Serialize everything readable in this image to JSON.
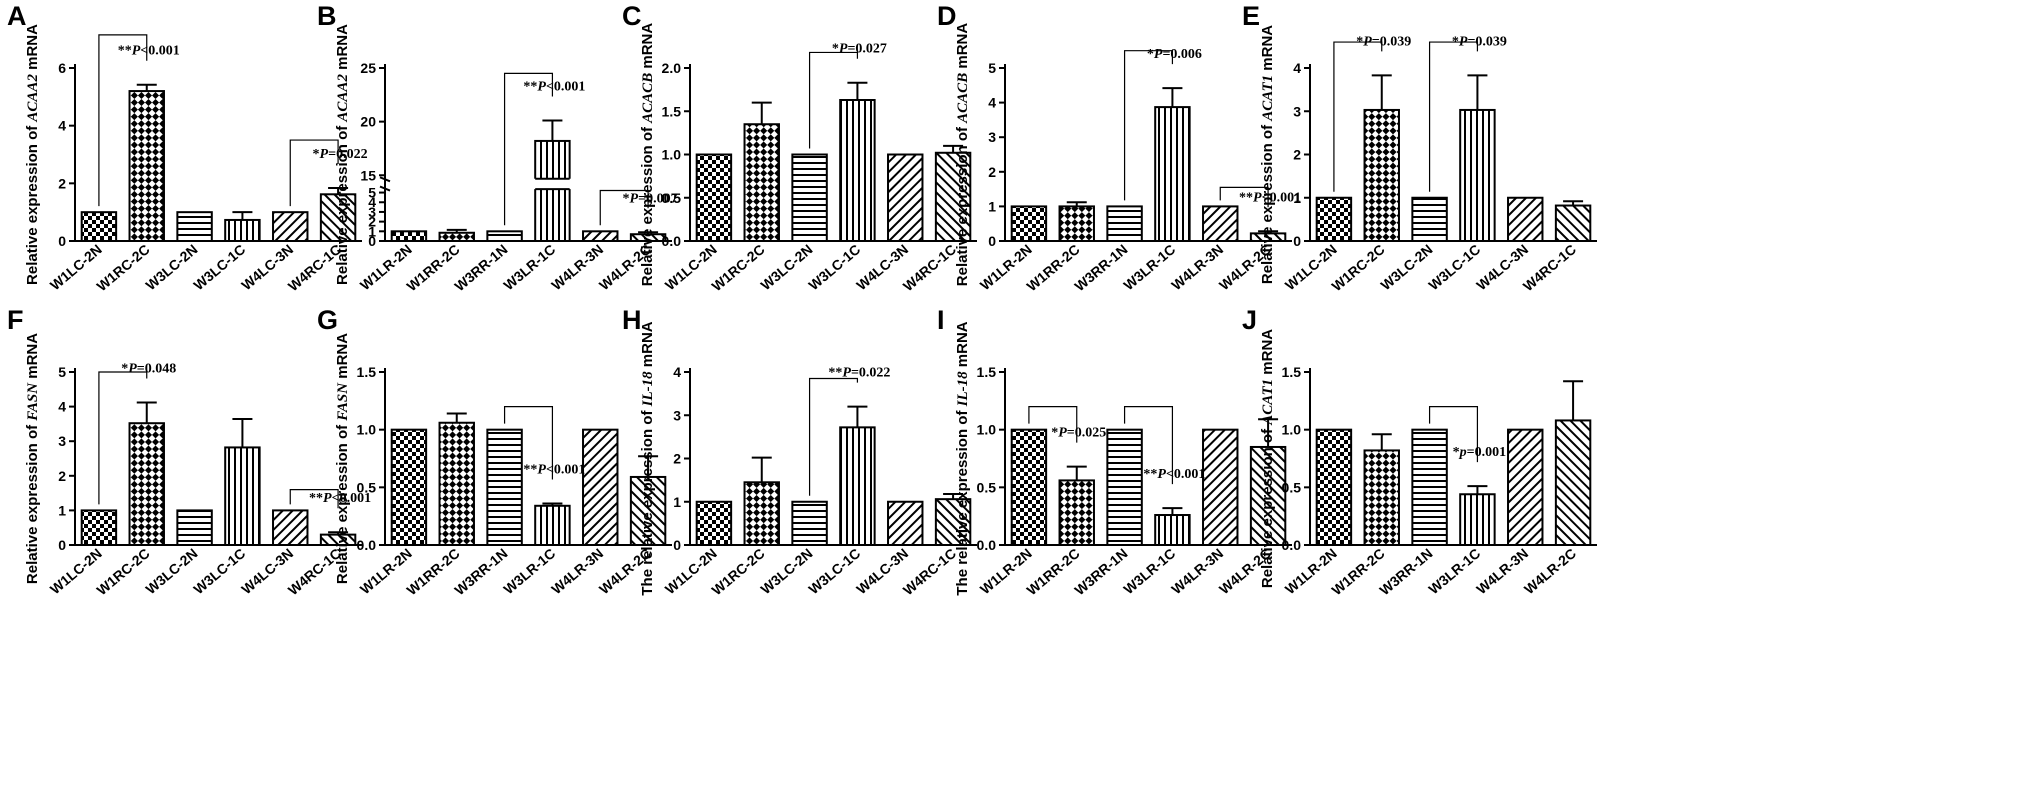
{
  "figure": {
    "chart_data": [
      {
        "type": "bar",
        "panel": "A",
        "ylabel_prefix": "Relative expression of",
        "gene": "ACAA2",
        "ylabel_suffix": "mRNA",
        "categories": [
          "W1LC-2N",
          "W1RC-2C",
          "W3LC-2N",
          "W3LC-1C",
          "W4LC-3N",
          "W4RC-1C"
        ],
        "values": [
          1.0,
          5.2,
          1.0,
          0.73,
          1.0,
          1.62
        ],
        "errors": [
          0,
          0.22,
          0,
          0.27,
          0,
          0.22
        ],
        "patterns": [
          "check",
          "checkBig",
          "hstripe",
          "vstripe",
          "diag",
          "diag2"
        ],
        "ylim": [
          0,
          6
        ],
        "ticks": [
          0,
          2,
          4,
          6
        ],
        "annotations": [
          {
            "from": 0,
            "to": 1,
            "level": 7.15,
            "p": "P<0.001",
            "stars": "**"
          },
          {
            "from": 4,
            "to": 5,
            "level": 3.5,
            "p": "P=0.022",
            "stars": "*"
          }
        ]
      },
      {
        "type": "bar",
        "panel": "B",
        "broken_axis": true,
        "ylabel_prefix": "Relative expression of",
        "gene": "ACAA2",
        "ylabel_suffix": "mRNA",
        "categories": [
          "W1LR-2N",
          "W1RR-2C",
          "W3RR-1N",
          "W3LR-1C",
          "W4LR-3N",
          "W4LR-2C"
        ],
        "values": [
          1.0,
          0.85,
          1.0,
          18.2,
          1.0,
          0.7
        ],
        "errors": [
          0,
          0.3,
          0,
          1.9,
          0,
          0.2
        ],
        "patterns": [
          "check",
          "checkBig",
          "hstripe",
          "vstripe",
          "diag",
          "diag2"
        ],
        "ylim": [
          0,
          25
        ],
        "ticks": [
          0,
          1,
          2,
          3,
          4,
          5,
          15,
          20,
          25
        ],
        "annotations": [
          {
            "from": 2,
            "to": 3,
            "level": 24.5,
            "p": "P<0.001",
            "stars": "**"
          },
          {
            "from": 4,
            "to": 5,
            "level": 6.2,
            "p": "P=0.007",
            "stars": "*"
          }
        ]
      },
      {
        "type": "bar",
        "panel": "C",
        "ylabel_prefix": "Relative expression of",
        "gene": "ACACB",
        "ylabel_suffix": "mRNA",
        "categories": [
          "W1LC-2N",
          "W1RC-2C",
          "W3LC-2N",
          "W3LC-1C",
          "W4LC-3N",
          "W4RC-1C"
        ],
        "values": [
          1.0,
          1.35,
          1.0,
          1.63,
          1.0,
          1.02
        ],
        "errors": [
          0,
          0.25,
          0,
          0.2,
          0,
          0.08
        ],
        "patterns": [
          "check",
          "checkBig",
          "hstripe",
          "vstripe",
          "diag",
          "diag2"
        ],
        "ylim": [
          0,
          2.0
        ],
        "ticks": [
          0.0,
          0.5,
          1.0,
          1.5,
          2.0
        ],
        "annotations": [
          {
            "from": 2,
            "to": 3,
            "level": 2.18,
            "p": "P=0.027",
            "stars": "*"
          }
        ]
      },
      {
        "type": "bar",
        "panel": "D",
        "ylabel_prefix": "Relative expression of",
        "gene": "ACACB",
        "ylabel_suffix": "mRNA",
        "categories": [
          "W1LR-2N",
          "W1RR-2C",
          "W3RR-1N",
          "W3LR-1C",
          "W4LR-3N",
          "W4LR-2C"
        ],
        "values": [
          1.0,
          1.0,
          1.0,
          3.87,
          1.0,
          0.22
        ],
        "errors": [
          0,
          0.12,
          0,
          0.55,
          0,
          0.06
        ],
        "patterns": [
          "check",
          "checkBig",
          "hstripe",
          "vstripe",
          "diag",
          "diag2"
        ],
        "ylim": [
          0,
          5
        ],
        "ticks": [
          0,
          1,
          2,
          3,
          4,
          5
        ],
        "annotations": [
          {
            "from": 2,
            "to": 3,
            "level": 5.5,
            "p": "P=0.006",
            "stars": "*"
          },
          {
            "from": 4,
            "to": 5,
            "level": 1.55,
            "p": "P<0.001",
            "stars": "**"
          }
        ]
      },
      {
        "type": "bar",
        "panel": "E",
        "ylabel_prefix": "Relative expression of",
        "gene": "ACAT1",
        "ylabel_suffix": "mRNA",
        "categories": [
          "W1LC-2N",
          "W1RC-2C",
          "W3LC-2N",
          "W3LC-1C",
          "W4LC-3N",
          "W4RC-1C"
        ],
        "values": [
          1.0,
          3.03,
          1.0,
          3.03,
          1.0,
          0.82
        ],
        "errors": [
          0,
          0.8,
          0,
          0.8,
          0,
          0.1
        ],
        "patterns": [
          "check",
          "checkBig",
          "hstripe",
          "vstripe",
          "diag",
          "diag2"
        ],
        "ylim": [
          0,
          4
        ],
        "ticks": [
          0,
          1,
          2,
          3,
          4
        ],
        "annotations": [
          {
            "from": 0,
            "to": 1,
            "level": 4.6,
            "p": "P=0.039",
            "stars": "*"
          },
          {
            "from": 2,
            "to": 3,
            "level": 4.6,
            "p": "P=0.039",
            "stars": "*"
          }
        ]
      },
      {
        "type": "bar",
        "panel": "F",
        "ylabel_prefix": "Relative expression of",
        "gene": "FASN",
        "ylabel_suffix": "mRNA",
        "categories": [
          "W1LC-2N",
          "W1RC-2C",
          "W3LC-2N",
          "W3LC-1C",
          "W4LC-3N",
          "W4RC-1C"
        ],
        "values": [
          1.0,
          3.52,
          1.0,
          2.82,
          1.0,
          0.3
        ],
        "errors": [
          0,
          0.6,
          0,
          0.82,
          0,
          0.07
        ],
        "patterns": [
          "check",
          "checkBig",
          "hstripe",
          "vstripe",
          "diag",
          "diag2"
        ],
        "ylim": [
          0,
          5
        ],
        "ticks": [
          0,
          1,
          2,
          3,
          4,
          5
        ],
        "annotations": [
          {
            "from": 0,
            "to": 1,
            "level": 5.0,
            "p": "P=0.048",
            "stars": "*"
          },
          {
            "from": 4,
            "to": 5,
            "level": 1.6,
            "p": "P<0.001",
            "stars": "**"
          }
        ]
      },
      {
        "type": "bar",
        "panel": "G",
        "ylabel_prefix": "Relative expression of",
        "gene": "FASN",
        "ylabel_suffix": "mRNA",
        "categories": [
          "W1LR-2N",
          "W1RR-2C",
          "W3RR-1N",
          "W3LR-1C",
          "W4LR-3N",
          "W4LR-2C"
        ],
        "values": [
          1.0,
          1.06,
          1.0,
          0.34,
          1.0,
          0.59
        ],
        "errors": [
          0,
          0.08,
          0,
          0.02,
          0,
          0.18
        ],
        "patterns": [
          "check",
          "checkBig",
          "hstripe",
          "vstripe",
          "diag",
          "diag2"
        ],
        "ylim": [
          0,
          1.5
        ],
        "ticks": [
          0.0,
          0.5,
          1.0,
          1.5
        ],
        "annotations": [
          {
            "from": 2,
            "to": 3,
            "level": 1.2,
            "p": "P<0.001",
            "stars": "**"
          }
        ]
      },
      {
        "type": "bar",
        "panel": "H",
        "ylabel_prefix": "The relative expression of",
        "gene": "IL-18",
        "ylabel_suffix": "mRNA",
        "categories": [
          "W1LC-2N",
          "W1RC-2C",
          "W3LC-2N",
          "W3LC-1C",
          "W4LC-3N",
          "W4RC-1C"
        ],
        "values": [
          1.0,
          1.45,
          1.0,
          2.72,
          1.0,
          1.06
        ],
        "errors": [
          0,
          0.57,
          0,
          0.48,
          0,
          0.12
        ],
        "patterns": [
          "check",
          "checkBig",
          "hstripe",
          "vstripe",
          "diag",
          "diag2"
        ],
        "ylim": [
          0,
          4
        ],
        "ticks": [
          0,
          1,
          2,
          3,
          4
        ],
        "annotations": [
          {
            "from": 2,
            "to": 3,
            "level": 3.85,
            "p": "P=0.022",
            "stars": "**"
          }
        ]
      },
      {
        "type": "bar",
        "panel": "I",
        "ylabel_prefix": "The relative expression of",
        "gene": "IL-18",
        "ylabel_suffix": "mRNA",
        "categories": [
          "W1LR-2N",
          "W1RR-2C",
          "W3RR-1N",
          "W3LR-1C",
          "W4LR-3N",
          "W4LR-2C"
        ],
        "values": [
          1.0,
          0.56,
          1.0,
          0.26,
          1.0,
          0.85
        ],
        "errors": [
          0,
          0.12,
          0,
          0.06,
          0,
          0.24
        ],
        "patterns": [
          "check",
          "checkBig",
          "hstripe",
          "vstripe",
          "diag",
          "diag2"
        ],
        "ylim": [
          0,
          1.5
        ],
        "ticks": [
          0.0,
          0.5,
          1.0,
          1.5
        ],
        "annotations": [
          {
            "from": 0,
            "to": 1,
            "level": 1.2,
            "p": "P=0.025",
            "stars": "*"
          },
          {
            "from": 2,
            "to": 3,
            "level": 1.2,
            "p": "P<0.001",
            "stars": "**"
          }
        ]
      },
      {
        "type": "bar",
        "panel": "J",
        "ylabel_prefix": "Relative expression of",
        "gene": "ACAT1",
        "ylabel_suffix": "mRNA",
        "categories": [
          "W1LR-2N",
          "W1RR-2C",
          "W3RR-1N",
          "W3LR-1C",
          "W4LR-3N",
          "W4LR-2C"
        ],
        "values": [
          1.0,
          0.82,
          1.0,
          0.44,
          1.0,
          1.08
        ],
        "errors": [
          0,
          0.14,
          0,
          0.07,
          0,
          0.34
        ],
        "patterns": [
          "check",
          "checkBig",
          "hstripe",
          "vstripe",
          "diag",
          "diag2"
        ],
        "ylim": [
          0,
          1.5
        ],
        "ticks": [
          0.0,
          0.5,
          1.0,
          1.5
        ],
        "annotations": [
          {
            "from": 2,
            "to": 3,
            "level": 1.2,
            "p": "p=0.001",
            "stars": "*"
          }
        ]
      }
    ]
  }
}
